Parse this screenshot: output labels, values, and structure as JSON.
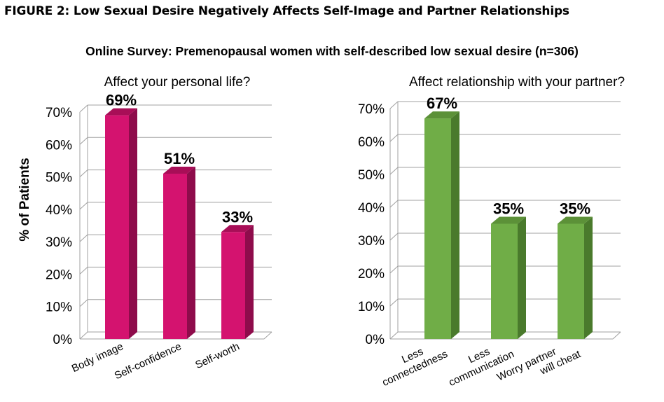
{
  "figure_title": "FIGURE 2: Low Sexual Desire Negatively Affects Self-Image and Partner Relationships",
  "survey_title": "Online Survey: Premenopausal women with self-described low sexual desire (n=306)",
  "colors": {
    "left_front": "#d4136f",
    "left_side": "#8e0c4b",
    "left_top": "#a80e57",
    "right_front": "#70ad47",
    "right_side": "#4a7a2c",
    "right_top": "#5c9138",
    "grid": "#a0a0a0"
  },
  "chart_data": [
    {
      "type": "bar",
      "title": "Affect your personal life?",
      "ylabel": "% of Patients",
      "categories": [
        "Body image",
        "Self-confidence",
        "Self-worth"
      ],
      "values": [
        69,
        51,
        33
      ],
      "data_labels": [
        "69%",
        "51%",
        "33%"
      ],
      "ylim": [
        0,
        70
      ],
      "yticks": [
        "0%",
        "10%",
        "20%",
        "30%",
        "40%",
        "50%",
        "60%",
        "70%"
      ],
      "grid": true,
      "bar_color": "#d4136f"
    },
    {
      "type": "bar",
      "title": "Affect relationship with your partner?",
      "categories": [
        [
          "Less",
          "connectedness"
        ],
        [
          "Less",
          "communication"
        ],
        [
          "Worry partner",
          "will cheat"
        ]
      ],
      "values": [
        67,
        35,
        35
      ],
      "data_labels": [
        "67%",
        "35%",
        "35%"
      ],
      "ylim": [
        0,
        70
      ],
      "yticks": [
        "0%",
        "10%",
        "20%",
        "30%",
        "40%",
        "50%",
        "60%",
        "70%"
      ],
      "grid": true,
      "bar_color": "#70ad47"
    }
  ]
}
